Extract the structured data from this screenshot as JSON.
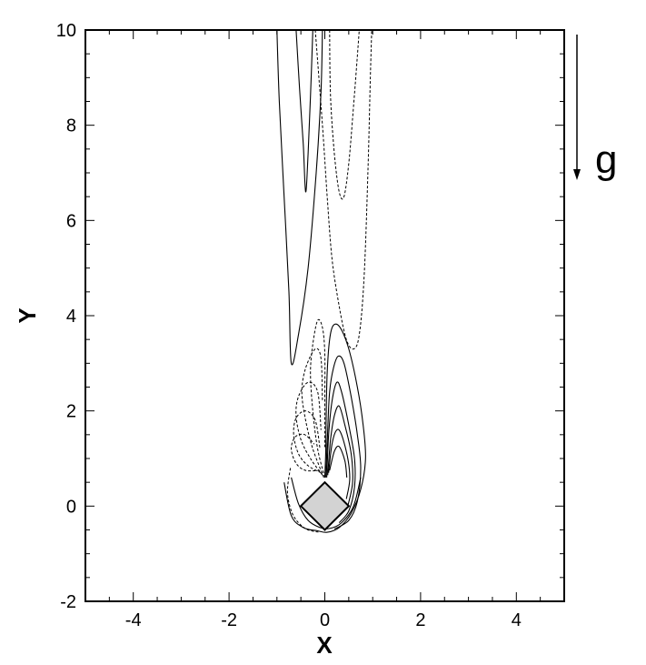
{
  "chart_data": {
    "type": "contour",
    "xlabel": "X",
    "ylabel": "Y",
    "xlim": [
      -5,
      5
    ],
    "ylim": [
      -2,
      10
    ],
    "xticks": [
      -4,
      -2,
      0,
      2,
      4
    ],
    "yticks": [
      -2,
      0,
      2,
      4,
      6,
      8,
      10
    ],
    "xtick_labels": [
      "-4",
      "-2",
      "0",
      "2",
      "4"
    ],
    "ytick_labels": [
      "-2",
      "0",
      "2",
      "4",
      "6",
      "8",
      "10"
    ],
    "grid": false,
    "annotation": {
      "label": "g",
      "direction": "down"
    },
    "obstacle": {
      "shape": "diamond",
      "center": [
        0,
        0
      ],
      "half_diagonal": 0.5,
      "fill": "#d3d3d3"
    },
    "solid_contours": [
      [
        [
          -1.0,
          10
        ],
        [
          -0.95,
          8.5
        ],
        [
          -0.85,
          6.5
        ],
        [
          -0.75,
          4.5
        ],
        [
          -0.7,
          3.0
        ],
        [
          -0.55,
          3.6
        ],
        [
          -0.35,
          5.0
        ],
        [
          -0.18,
          7.0
        ],
        [
          -0.08,
          8.7
        ],
        [
          -0.05,
          10
        ]
      ],
      [
        [
          -0.6,
          10
        ],
        [
          -0.53,
          8.8
        ],
        [
          -0.45,
          7.6
        ],
        [
          -0.4,
          6.6
        ],
        [
          -0.35,
          7.4
        ],
        [
          -0.3,
          8.6
        ],
        [
          -0.25,
          10
        ]
      ],
      [
        [
          -0.85,
          0.5
        ],
        [
          -0.7,
          -0.2
        ],
        [
          -0.45,
          -0.45
        ],
        [
          -0.15,
          -0.52
        ],
        [
          0.05,
          -0.55
        ],
        [
          0.3,
          -0.45
        ],
        [
          0.55,
          -0.15
        ],
        [
          0.75,
          0.35
        ],
        [
          0.85,
          1.0
        ],
        [
          0.8,
          1.7
        ],
        [
          0.68,
          2.5
        ],
        [
          0.5,
          3.3
        ],
        [
          0.32,
          3.75
        ],
        [
          0.18,
          3.8
        ],
        [
          0.1,
          3.5
        ],
        [
          0.05,
          2.8
        ],
        [
          0.03,
          2.0
        ],
        [
          0.02,
          1.2
        ],
        [
          0.0,
          0.6
        ]
      ],
      [
        [
          0.02,
          0.6
        ],
        [
          0.06,
          1.6
        ],
        [
          0.1,
          2.4
        ],
        [
          0.18,
          2.9
        ],
        [
          0.28,
          3.15
        ],
        [
          0.4,
          3.0
        ],
        [
          0.55,
          2.3
        ],
        [
          0.68,
          1.5
        ],
        [
          0.75,
          0.8
        ],
        [
          0.68,
          0.1
        ],
        [
          0.5,
          -0.3
        ],
        [
          0.2,
          -0.48
        ]
      ],
      [
        [
          0.04,
          0.6
        ],
        [
          0.08,
          1.5
        ],
        [
          0.15,
          2.2
        ],
        [
          0.25,
          2.6
        ],
        [
          0.35,
          2.4
        ],
        [
          0.5,
          1.7
        ],
        [
          0.62,
          1.0
        ],
        [
          0.62,
          0.4
        ],
        [
          0.5,
          -0.1
        ],
        [
          0.3,
          -0.35
        ]
      ],
      [
        [
          0.06,
          0.65
        ],
        [
          0.12,
          1.4
        ],
        [
          0.2,
          1.9
        ],
        [
          0.3,
          2.1
        ],
        [
          0.42,
          1.7
        ],
        [
          0.55,
          1.1
        ],
        [
          0.58,
          0.5
        ],
        [
          0.48,
          0.0
        ]
      ],
      [
        [
          0.08,
          0.7
        ],
        [
          0.15,
          1.3
        ],
        [
          0.25,
          1.6
        ],
        [
          0.35,
          1.5
        ],
        [
          0.48,
          1.0
        ],
        [
          0.52,
          0.55
        ],
        [
          0.45,
          0.15
        ]
      ],
      [
        [
          0.1,
          0.75
        ],
        [
          0.2,
          1.15
        ],
        [
          0.3,
          1.25
        ],
        [
          0.42,
          0.95
        ],
        [
          0.46,
          0.6
        ]
      ],
      [
        [
          -0.7,
          0.6
        ],
        [
          -0.55,
          0.05
        ],
        [
          -0.35,
          -0.3
        ],
        [
          -0.1,
          -0.45
        ],
        [
          0.1,
          -0.47
        ],
        [
          0.35,
          -0.35
        ],
        [
          0.6,
          0.0
        ],
        [
          0.75,
          0.6
        ]
      ]
    ],
    "dashed_contours": [
      [
        [
          0.1,
          10
        ],
        [
          0.12,
          8.6
        ],
        [
          0.2,
          7.4
        ],
        [
          0.3,
          6.6
        ],
        [
          0.4,
          6.5
        ],
        [
          0.5,
          7.2
        ],
        [
          0.6,
          8.4
        ],
        [
          0.72,
          10
        ]
      ],
      [
        [
          -0.2,
          10
        ],
        [
          -0.05,
          8.0
        ],
        [
          0.05,
          6.5
        ],
        [
          0.15,
          5.2
        ],
        [
          0.3,
          4.2
        ],
        [
          0.45,
          3.5
        ],
        [
          0.6,
          3.3
        ],
        [
          0.72,
          3.6
        ],
        [
          0.82,
          4.8
        ],
        [
          0.9,
          7.0
        ],
        [
          0.95,
          9.0
        ],
        [
          0.98,
          10
        ]
      ],
      [
        [
          0.0,
          0.6
        ],
        [
          -0.15,
          1.2
        ],
        [
          -0.25,
          2.0
        ],
        [
          -0.3,
          2.8
        ],
        [
          -0.25,
          3.4
        ],
        [
          -0.15,
          3.9
        ],
        [
          -0.05,
          3.75
        ],
        [
          0.0,
          3.2
        ],
        [
          0.0,
          2.2
        ],
        [
          0.0,
          1.2
        ]
      ],
      [
        [
          -0.02,
          0.6
        ],
        [
          -0.25,
          1.2
        ],
        [
          -0.4,
          1.8
        ],
        [
          -0.48,
          2.4
        ],
        [
          -0.4,
          2.9
        ],
        [
          -0.2,
          3.3
        ],
        [
          -0.08,
          3.1
        ],
        [
          -0.05,
          2.2
        ]
      ],
      [
        [
          -0.05,
          0.65
        ],
        [
          -0.3,
          1.0
        ],
        [
          -0.5,
          1.4
        ],
        [
          -0.6,
          1.9
        ],
        [
          -0.55,
          2.3
        ],
        [
          -0.35,
          2.6
        ],
        [
          -0.15,
          2.4
        ],
        [
          -0.08,
          1.6
        ]
      ],
      [
        [
          -0.08,
          0.7
        ],
        [
          -0.35,
          0.85
        ],
        [
          -0.55,
          1.1
        ],
        [
          -0.65,
          1.5
        ],
        [
          -0.6,
          1.85
        ],
        [
          -0.4,
          2.0
        ],
        [
          -0.2,
          1.8
        ],
        [
          -0.1,
          1.2
        ]
      ],
      [
        [
          -0.1,
          0.75
        ],
        [
          -0.4,
          0.75
        ],
        [
          -0.6,
          0.9
        ],
        [
          -0.7,
          1.2
        ],
        [
          -0.62,
          1.45
        ],
        [
          -0.42,
          1.5
        ],
        [
          -0.22,
          1.3
        ]
      ],
      [
        [
          -0.72,
          0.8
        ],
        [
          -0.78,
          0.3
        ],
        [
          -0.7,
          -0.1
        ],
        [
          -0.55,
          -0.35
        ],
        [
          -0.35,
          -0.5
        ],
        [
          -0.1,
          -0.55
        ]
      ]
    ]
  }
}
